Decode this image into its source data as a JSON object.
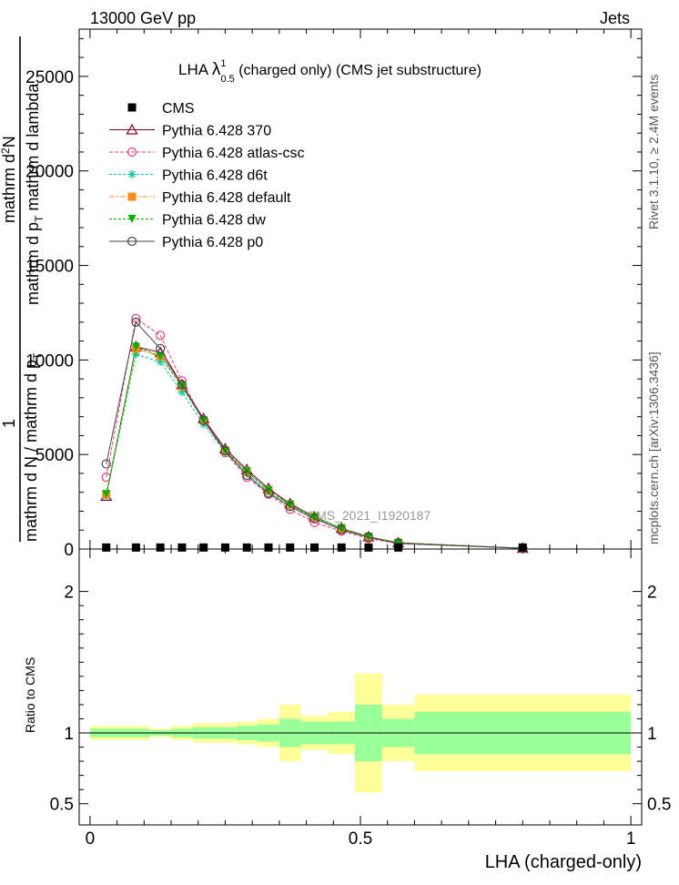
{
  "header": {
    "left": "13000 GeV pp",
    "right": "Jets"
  },
  "title": {
    "prefix": "LHA ",
    "lambda": "λ",
    "sup": "1",
    "sub": "0.5",
    "rest": " (charged only) (CMS jet substructure)"
  },
  "side": {
    "rivet": "Rivet 3.1.10, ≥ 2.4M events",
    "mcplots": "mcplots.cern.ch [arXiv:1306.3436]"
  },
  "watermark": "CMS_2021_I1920187",
  "ylabel_top": {
    "num_frac": "1",
    "line1": "mathrm d N / mathrm d p",
    "line1_sub": "T",
    "line2": "mathrm d",
    "line2_sup": "2",
    "line2_rest": "N",
    "line3": "mathrm d p",
    "line3_sub": "T",
    "line3_rest": " mathrm d lambda"
  },
  "ylabel_bottom": "Ratio to CMS",
  "xlabel": "LHA (charged-only)",
  "colors": {
    "band_inner": "#99ff99",
    "band_outer": "#ffff99"
  },
  "chart_data": {
    "type": "line",
    "main": {
      "ylim": [
        0,
        27500
      ],
      "yticks": [
        0,
        5000,
        10000,
        15000,
        20000,
        25000
      ],
      "ytick_labels": [
        "0",
        "5000",
        "10000",
        "15000",
        "20000",
        "25000"
      ]
    },
    "ratio": {
      "ylim": [
        0.35,
        2.3
      ],
      "yticks": [
        0.5,
        1,
        2
      ],
      "ytick_labels": [
        "0.5",
        "1",
        "2"
      ]
    },
    "xlim": [
      -0.02,
      1.02
    ],
    "xticks": [
      0,
      0.5,
      1
    ],
    "xtick_labels": [
      "0",
      "0.5",
      "1"
    ],
    "x_edges": [
      0.0,
      0.06,
      0.11,
      0.15,
      0.19,
      0.23,
      0.27,
      0.31,
      0.35,
      0.39,
      0.44,
      0.49,
      0.54,
      0.6,
      1.0
    ],
    "x": [
      0.03,
      0.085,
      0.13,
      0.17,
      0.21,
      0.25,
      0.29,
      0.33,
      0.37,
      0.415,
      0.465,
      0.515,
      0.57,
      0.8
    ],
    "cms": [
      80,
      80,
      80,
      80,
      80,
      80,
      80,
      80,
      80,
      80,
      80,
      80,
      80,
      80
    ],
    "ratio_bands": {
      "inner_half": [
        0.03,
        0.03,
        0.02,
        0.03,
        0.04,
        0.04,
        0.05,
        0.06,
        0.1,
        0.08,
        0.08,
        0.2,
        0.1,
        0.15
      ],
      "outer_half": [
        0.05,
        0.05,
        0.03,
        0.05,
        0.07,
        0.07,
        0.08,
        0.1,
        0.2,
        0.12,
        0.15,
        0.42,
        0.2,
        0.27
      ]
    },
    "series": [
      {
        "name": "CMS",
        "color": "#000000",
        "marker": "square",
        "dash": "none"
      },
      {
        "name": "Pythia 6.428 370",
        "color": "#800020",
        "marker": "triangle",
        "dash": "solid",
        "values": [
          2800,
          10700,
          10400,
          8700,
          6900,
          5300,
          4200,
          3200,
          2400,
          1700,
          1100,
          650,
          330,
          40
        ]
      },
      {
        "name": "Pythia 6.428 atlas-csc",
        "color": "#e8407a",
        "marker": "circle",
        "dash": "4,2",
        "values": [
          3800,
          12200,
          11300,
          8900,
          6800,
          5100,
          3800,
          2900,
          2100,
          1400,
          950,
          560,
          280,
          40
        ]
      },
      {
        "name": "Pythia 6.428 d6t",
        "color": "#00c8a0",
        "marker": "star",
        "dash": "3,2",
        "values": [
          2800,
          10300,
          9900,
          8300,
          6600,
          5100,
          4000,
          3000,
          2300,
          1650,
          1080,
          640,
          320,
          40
        ]
      },
      {
        "name": "Pythia 6.428 default",
        "color": "#ff8c1a",
        "marker": "square",
        "dash": "6,2,2,2",
        "values": [
          2900,
          10600,
          10200,
          8600,
          6800,
          5200,
          4100,
          3100,
          2350,
          1680,
          1100,
          650,
          330,
          40
        ]
      },
      {
        "name": "Pythia 6.428 dw",
        "color": "#00b000",
        "marker": "tri-down",
        "dash": "3,2",
        "values": [
          2900,
          10700,
          10200,
          8600,
          6800,
          5200,
          4100,
          3100,
          2350,
          1680,
          1100,
          650,
          330,
          40
        ]
      },
      {
        "name": "Pythia 6.428 p0",
        "color": "#444444",
        "marker": "circle",
        "dash": "solid",
        "values": [
          4500,
          12000,
          10600,
          8700,
          6800,
          5200,
          3900,
          2950,
          2250,
          1600,
          1020,
          620,
          300,
          40
        ]
      }
    ]
  }
}
